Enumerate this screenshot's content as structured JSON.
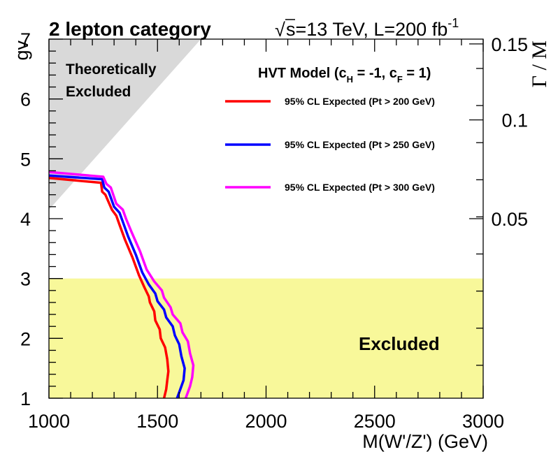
{
  "chart_data": {
    "type": "line",
    "category_label": "2 lepton category",
    "energy_label": "s=13 TeV, L=200 fb",
    "energy_sqrt_symbol": "√",
    "lumi_superscript": "-1",
    "xlabel": "M(W'/Z') (GeV)",
    "ylabel": "gv",
    "y2label": "Γ / M",
    "xlim": [
      1000,
      3000
    ],
    "ylim": [
      1,
      7
    ],
    "x_ticks": [
      "1000",
      "1500",
      "2000",
      "2500",
      "3000"
    ],
    "y_ticks": [
      "1",
      "2",
      "3",
      "4",
      "5",
      "6",
      "7"
    ],
    "y2_ticks": [
      {
        "label": "0.05",
        "gv": 4.0
      },
      {
        "label": "0.1",
        "gv": 5.65
      },
      {
        "label": "0.15",
        "gv": 6.92
      }
    ],
    "legend_title_prefix": "HVT Model (c",
    "legend_title_sub1": "H",
    "legend_title_mid": " = -1, c",
    "legend_title_sub2": "F",
    "legend_title_suffix": " = 1)",
    "theory_region": {
      "label_line1": "Theoretically",
      "label_line2": "Excluded",
      "color": "#d9d9d9",
      "polygon": [
        [
          1000,
          4.15
        ],
        [
          1000,
          7
        ],
        [
          1700,
          7
        ]
      ]
    },
    "excluded_region": {
      "label": "Excluded",
      "color": "#f8f89a",
      "ymin": 1,
      "ymax": 3
    },
    "series": [
      {
        "name": "95% CL Expected (Pt > 200 GeV)",
        "color": "#ff0000",
        "points": [
          [
            1000,
            4.68
          ],
          [
            1240,
            4.6
          ],
          [
            1245,
            4.45
          ],
          [
            1260,
            4.4
          ],
          [
            1290,
            4.15
          ],
          [
            1310,
            4.05
          ],
          [
            1325,
            3.9
          ],
          [
            1350,
            3.65
          ],
          [
            1385,
            3.35
          ],
          [
            1415,
            3.05
          ],
          [
            1440,
            2.85
          ],
          [
            1460,
            2.7
          ],
          [
            1465,
            2.6
          ],
          [
            1485,
            2.45
          ],
          [
            1490,
            2.3
          ],
          [
            1510,
            2.15
          ],
          [
            1515,
            2.0
          ],
          [
            1535,
            1.85
          ],
          [
            1545,
            1.65
          ],
          [
            1550,
            1.45
          ],
          [
            1545,
            1.3
          ],
          [
            1540,
            1.15
          ],
          [
            1530,
            1.0
          ]
        ]
      },
      {
        "name": "95% CL Expected (Pt > 250 GeV)",
        "color": "#0000ff",
        "points": [
          [
            1000,
            4.72
          ],
          [
            1245,
            4.66
          ],
          [
            1255,
            4.52
          ],
          [
            1275,
            4.45
          ],
          [
            1300,
            4.2
          ],
          [
            1325,
            4.1
          ],
          [
            1340,
            3.95
          ],
          [
            1365,
            3.7
          ],
          [
            1400,
            3.4
          ],
          [
            1430,
            3.1
          ],
          [
            1460,
            2.9
          ],
          [
            1490,
            2.75
          ],
          [
            1500,
            2.62
          ],
          [
            1530,
            2.48
          ],
          [
            1540,
            2.35
          ],
          [
            1570,
            2.2
          ],
          [
            1580,
            2.05
          ],
          [
            1600,
            1.9
          ],
          [
            1610,
            1.7
          ],
          [
            1625,
            1.5
          ],
          [
            1620,
            1.3
          ],
          [
            1605,
            1.15
          ],
          [
            1590,
            1.0
          ]
        ]
      },
      {
        "name": "95% CL Expected (Pt > 300 GeV)",
        "color": "#ff00ff",
        "points": [
          [
            1000,
            4.78
          ],
          [
            1250,
            4.7
          ],
          [
            1265,
            4.58
          ],
          [
            1285,
            4.52
          ],
          [
            1310,
            4.25
          ],
          [
            1340,
            4.15
          ],
          [
            1355,
            4.0
          ],
          [
            1380,
            3.78
          ],
          [
            1420,
            3.45
          ],
          [
            1450,
            3.15
          ],
          [
            1485,
            2.95
          ],
          [
            1520,
            2.8
          ],
          [
            1530,
            2.68
          ],
          [
            1560,
            2.52
          ],
          [
            1570,
            2.4
          ],
          [
            1605,
            2.25
          ],
          [
            1615,
            2.1
          ],
          [
            1640,
            1.95
          ],
          [
            1650,
            1.75
          ],
          [
            1665,
            1.55
          ],
          [
            1660,
            1.35
          ],
          [
            1650,
            1.2
          ],
          [
            1630,
            1.0
          ]
        ]
      }
    ]
  }
}
